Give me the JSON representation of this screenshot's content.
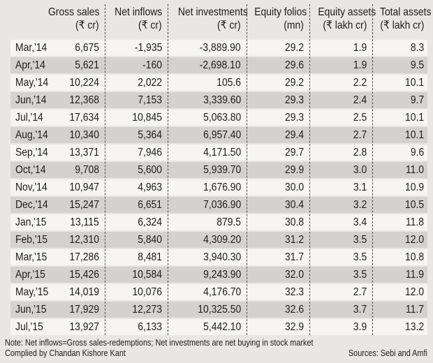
{
  "colors": {
    "page_bg": "#e8e7e4",
    "row_light": "#f6f5f2",
    "row_dark": "#d3d2cf",
    "text": "#1c1c1c",
    "separator": "#4c4c4c"
  },
  "chart_data": {
    "type": "table",
    "columns": [
      {
        "label": "",
        "unit": ""
      },
      {
        "label": "Gross sales",
        "unit": "(₹ cr)"
      },
      {
        "label": "Net inflows",
        "unit": "(₹ cr)"
      },
      {
        "label": "Net investments",
        "unit": "(₹ cr)"
      },
      {
        "label": "Equity folios",
        "unit": "(mn)"
      },
      {
        "label": "Equity assets",
        "unit": "(₹ lakh cr)"
      },
      {
        "label": "Total assets",
        "unit": "(₹ lakh cr)"
      }
    ],
    "rows": [
      [
        "Mar,'14",
        "6,675",
        "-1,935",
        "-3,889.90",
        "29.2",
        "1.9",
        "8.3"
      ],
      [
        "Apr,'14",
        "5,621",
        "-160",
        "-2,698.10",
        "29.6",
        "1.9",
        "9.5"
      ],
      [
        "May,'14",
        "10,224",
        "2,022",
        "105.6",
        "29.2",
        "2.2",
        "10.1"
      ],
      [
        "Jun,'14",
        "12,368",
        "7,153",
        "3,339.60",
        "29.3",
        "2.4",
        "9.7"
      ],
      [
        "Jul,'14",
        "17,634",
        "10,845",
        "5,063.80",
        "29.3",
        "2.5",
        "10.1"
      ],
      [
        "Aug,'14",
        "10,340",
        "5,364",
        "6,957.40",
        "29.4",
        "2.7",
        "10.1"
      ],
      [
        "Sep,'14",
        "13,371",
        "7,946",
        "4,171.50",
        "29.7",
        "2.8",
        "9.6"
      ],
      [
        "Oct,'14",
        "9,708",
        "5,600",
        "5,939.70",
        "29.9",
        "3.0",
        "11.0"
      ],
      [
        "Nov,'14",
        "10,947",
        "4,963",
        "1,676.90",
        "30.0",
        "3.1",
        "10.9"
      ],
      [
        "Dec,'14",
        "15,247",
        "6,651",
        "7,036.90",
        "30.4",
        "3.2",
        "10.5"
      ],
      [
        "Jan,'15",
        "13,115",
        "6,324",
        "879.5",
        "30.8",
        "3.4",
        "11.8"
      ],
      [
        "Feb,'15",
        "12,310",
        "5,840",
        "4,309.20",
        "31.2",
        "3.5",
        "12.0"
      ],
      [
        "Mar,'15",
        "17,286",
        "8,481",
        "3,940.30",
        "31.7",
        "3.5",
        "10.8"
      ],
      [
        "Apr,'15",
        "15,426",
        "10,584",
        "9,243.90",
        "32.0",
        "3.5",
        "11.9"
      ],
      [
        "May,'15",
        "14,019",
        "10,076",
        "4,176.70",
        "32.3",
        "2.7",
        "12.0"
      ],
      [
        "Jun,'15",
        "17,929",
        "12,273",
        "10,325.50",
        "32.6",
        "3.7",
        "11.7"
      ],
      [
        "Jul,'15",
        "13,927",
        "6,133",
        "5,442.10",
        "32.9",
        "3.9",
        "13.2"
      ]
    ]
  },
  "footer": {
    "note": "Note: Net inflows=Gross sales-redemptions; Net investments are net buying in stock market",
    "compiled_by": "Complied by Chandan Kishore Kant",
    "sources": "Sources: Sebi and Amfi"
  }
}
